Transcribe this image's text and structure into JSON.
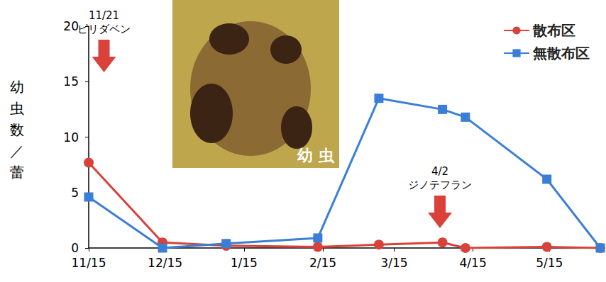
{
  "chart_data": {
    "type": "line",
    "y_label": "幼虫数／蕾",
    "inset_label": "幼 虫",
    "x": [
      0,
      29,
      54,
      90,
      114,
      139,
      148,
      180,
      201
    ],
    "series": [
      {
        "name": "散布区",
        "color": "#d9413a",
        "marker": "circle",
        "values": [
          7.7,
          0.5,
          0.2,
          0.1,
          0.3,
          0.5,
          0,
          0.1,
          0
        ]
      },
      {
        "name": "無散布区",
        "color": "#3a7fd5",
        "marker": "square",
        "values": [
          4.6,
          0,
          0.4,
          0.9,
          13.5,
          12.5,
          11.8,
          6.2,
          0
        ]
      }
    ],
    "xlim": [
      0,
      201
    ],
    "xticks": [
      {
        "value": 0,
        "label": "11/15"
      },
      {
        "value": 30,
        "label": "12/15"
      },
      {
        "value": 61,
        "label": "1/15"
      },
      {
        "value": 92,
        "label": "2/15"
      },
      {
        "value": 120,
        "label": "3/15"
      },
      {
        "value": 151,
        "label": "4/15"
      },
      {
        "value": 181,
        "label": "5/15"
      }
    ],
    "ylim": [
      0,
      20
    ],
    "yticks": [
      0,
      5,
      10,
      15,
      20
    ],
    "grid": false,
    "legend": "upper right",
    "annotations": [
      {
        "x": 6,
        "date": "11/21",
        "text": "ピリダベン",
        "color": "#d9413a"
      },
      {
        "x": 138,
        "date": "4/2",
        "text": "ジノテフラン",
        "color": "#d9413a"
      }
    ]
  }
}
